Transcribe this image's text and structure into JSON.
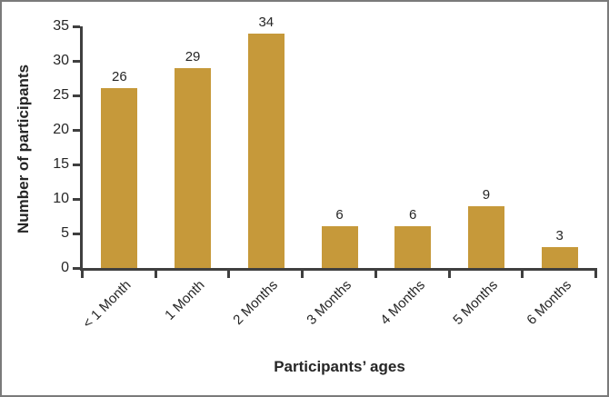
{
  "chart_data": {
    "type": "bar",
    "title": "",
    "categories": [
      "< 1 Month",
      "1 Month",
      "2 Months",
      "3 Months",
      "4 Months",
      "5 Months",
      "6 Months"
    ],
    "values": [
      26,
      29,
      34,
      6,
      6,
      9,
      3
    ],
    "xlabel": "Participants’ ages",
    "ylabel": "Number of participants",
    "ylim": [
      0,
      35
    ],
    "ytick_step": 5,
    "grid": false,
    "legend": "none",
    "bar_color": "#C6993A",
    "axis_color": "#3F3F3F",
    "text_color": "#262626",
    "border_color": "#7A7A7A"
  }
}
